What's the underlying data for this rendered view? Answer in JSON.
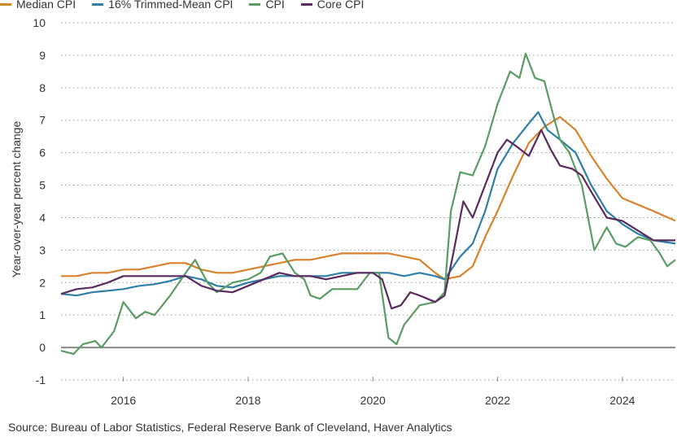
{
  "chart_data": {
    "type": "line",
    "title": "",
    "ylabel": "Year-over-year percent change",
    "xlabel": "",
    "ylim": [
      -1,
      10
    ],
    "xlim": [
      2015.0,
      2024.85
    ],
    "y_ticks": [
      "-1",
      "0",
      "1",
      "2",
      "3",
      "4",
      "5",
      "6",
      "7",
      "8",
      "9",
      "10"
    ],
    "x_ticks": [
      "2016",
      "2018",
      "2020",
      "2022",
      "2024"
    ],
    "grid": "horizontal dotted",
    "legend_position": "top-left",
    "source": "Source: Bureau of Labor Statistics, Federal Reserve Bank of Cleveland, Haver Analytics",
    "series": [
      {
        "name": "Median CPI",
        "color": "#d9822b",
        "points": [
          [
            2015.0,
            2.2
          ],
          [
            2015.25,
            2.2
          ],
          [
            2015.5,
            2.3
          ],
          [
            2015.75,
            2.3
          ],
          [
            2016.0,
            2.4
          ],
          [
            2016.25,
            2.4
          ],
          [
            2016.5,
            2.5
          ],
          [
            2016.75,
            2.6
          ],
          [
            2017.0,
            2.6
          ],
          [
            2017.25,
            2.4
          ],
          [
            2017.5,
            2.3
          ],
          [
            2017.75,
            2.3
          ],
          [
            2018.0,
            2.4
          ],
          [
            2018.25,
            2.5
          ],
          [
            2018.5,
            2.6
          ],
          [
            2018.75,
            2.7
          ],
          [
            2019.0,
            2.7
          ],
          [
            2019.25,
            2.8
          ],
          [
            2019.5,
            2.9
          ],
          [
            2019.75,
            2.9
          ],
          [
            2020.0,
            2.9
          ],
          [
            2020.25,
            2.9
          ],
          [
            2020.5,
            2.8
          ],
          [
            2020.75,
            2.7
          ],
          [
            2021.0,
            2.3
          ],
          [
            2021.15,
            2.1
          ],
          [
            2021.4,
            2.2
          ],
          [
            2021.6,
            2.5
          ],
          [
            2021.8,
            3.4
          ],
          [
            2022.0,
            4.2
          ],
          [
            2022.25,
            5.3
          ],
          [
            2022.5,
            6.3
          ],
          [
            2022.75,
            6.8
          ],
          [
            2023.0,
            7.1
          ],
          [
            2023.25,
            6.7
          ],
          [
            2023.5,
            5.9
          ],
          [
            2023.75,
            5.2
          ],
          [
            2024.0,
            4.6
          ],
          [
            2024.25,
            4.4
          ],
          [
            2024.5,
            4.2
          ],
          [
            2024.85,
            3.9
          ]
        ]
      },
      {
        "name": "16% Trimmed-Mean CPI",
        "color": "#2e7fa8",
        "points": [
          [
            2015.0,
            1.65
          ],
          [
            2015.25,
            1.6
          ],
          [
            2015.5,
            1.7
          ],
          [
            2015.75,
            1.75
          ],
          [
            2016.0,
            1.8
          ],
          [
            2016.25,
            1.9
          ],
          [
            2016.5,
            1.95
          ],
          [
            2016.75,
            2.05
          ],
          [
            2017.0,
            2.2
          ],
          [
            2017.25,
            2.1
          ],
          [
            2017.5,
            1.9
          ],
          [
            2017.75,
            1.85
          ],
          [
            2018.0,
            2.0
          ],
          [
            2018.25,
            2.1
          ],
          [
            2018.5,
            2.2
          ],
          [
            2018.75,
            2.2
          ],
          [
            2019.0,
            2.2
          ],
          [
            2019.25,
            2.2
          ],
          [
            2019.5,
            2.3
          ],
          [
            2019.75,
            2.3
          ],
          [
            2020.0,
            2.3
          ],
          [
            2020.25,
            2.3
          ],
          [
            2020.5,
            2.2
          ],
          [
            2020.75,
            2.3
          ],
          [
            2021.0,
            2.2
          ],
          [
            2021.15,
            2.1
          ],
          [
            2021.4,
            2.8
          ],
          [
            2021.6,
            3.2
          ],
          [
            2021.8,
            4.2
          ],
          [
            2022.0,
            5.5
          ],
          [
            2022.25,
            6.3
          ],
          [
            2022.5,
            6.9
          ],
          [
            2022.65,
            7.25
          ],
          [
            2022.8,
            6.7
          ],
          [
            2023.0,
            6.4
          ],
          [
            2023.25,
            6.0
          ],
          [
            2023.5,
            5.0
          ],
          [
            2023.75,
            4.2
          ],
          [
            2024.0,
            3.8
          ],
          [
            2024.25,
            3.5
          ],
          [
            2024.5,
            3.3
          ],
          [
            2024.85,
            3.2
          ]
        ]
      },
      {
        "name": "CPI",
        "color": "#5a9c63",
        "points": [
          [
            2015.0,
            -0.1
          ],
          [
            2015.2,
            -0.2
          ],
          [
            2015.35,
            0.1
          ],
          [
            2015.55,
            0.2
          ],
          [
            2015.65,
            0.0
          ],
          [
            2015.85,
            0.5
          ],
          [
            2016.0,
            1.4
          ],
          [
            2016.2,
            0.9
          ],
          [
            2016.35,
            1.1
          ],
          [
            2016.5,
            1.0
          ],
          [
            2016.75,
            1.6
          ],
          [
            2017.0,
            2.3
          ],
          [
            2017.15,
            2.7
          ],
          [
            2017.35,
            2.0
          ],
          [
            2017.5,
            1.7
          ],
          [
            2017.75,
            2.0
          ],
          [
            2018.0,
            2.1
          ],
          [
            2018.2,
            2.3
          ],
          [
            2018.35,
            2.8
          ],
          [
            2018.55,
            2.9
          ],
          [
            2018.75,
            2.3
          ],
          [
            2018.9,
            2.1
          ],
          [
            2019.0,
            1.6
          ],
          [
            2019.15,
            1.5
          ],
          [
            2019.35,
            1.8
          ],
          [
            2019.5,
            1.8
          ],
          [
            2019.75,
            1.8
          ],
          [
            2019.95,
            2.3
          ],
          [
            2020.1,
            2.3
          ],
          [
            2020.25,
            0.3
          ],
          [
            2020.38,
            0.1
          ],
          [
            2020.5,
            0.7
          ],
          [
            2020.75,
            1.3
          ],
          [
            2021.0,
            1.4
          ],
          [
            2021.15,
            1.7
          ],
          [
            2021.25,
            4.2
          ],
          [
            2021.4,
            5.4
          ],
          [
            2021.6,
            5.3
          ],
          [
            2021.8,
            6.2
          ],
          [
            2022.0,
            7.5
          ],
          [
            2022.2,
            8.5
          ],
          [
            2022.35,
            8.3
          ],
          [
            2022.45,
            9.05
          ],
          [
            2022.6,
            8.3
          ],
          [
            2022.75,
            8.2
          ],
          [
            2022.9,
            7.1
          ],
          [
            2023.0,
            6.4
          ],
          [
            2023.15,
            6.0
          ],
          [
            2023.35,
            5.0
          ],
          [
            2023.55,
            3.0
          ],
          [
            2023.75,
            3.7
          ],
          [
            2023.9,
            3.2
          ],
          [
            2024.05,
            3.1
          ],
          [
            2024.25,
            3.4
          ],
          [
            2024.45,
            3.3
          ],
          [
            2024.6,
            2.9
          ],
          [
            2024.72,
            2.5
          ],
          [
            2024.85,
            2.7
          ]
        ]
      },
      {
        "name": "Core CPI",
        "color": "#5a2a5e",
        "points": [
          [
            2015.0,
            1.65
          ],
          [
            2015.25,
            1.8
          ],
          [
            2015.5,
            1.85
          ],
          [
            2015.75,
            2.0
          ],
          [
            2016.0,
            2.2
          ],
          [
            2016.25,
            2.2
          ],
          [
            2016.5,
            2.2
          ],
          [
            2016.75,
            2.2
          ],
          [
            2017.0,
            2.2
          ],
          [
            2017.25,
            1.9
          ],
          [
            2017.5,
            1.75
          ],
          [
            2017.75,
            1.7
          ],
          [
            2018.0,
            1.9
          ],
          [
            2018.25,
            2.1
          ],
          [
            2018.5,
            2.3
          ],
          [
            2018.75,
            2.2
          ],
          [
            2019.0,
            2.2
          ],
          [
            2019.25,
            2.1
          ],
          [
            2019.5,
            2.2
          ],
          [
            2019.75,
            2.3
          ],
          [
            2020.0,
            2.3
          ],
          [
            2020.15,
            2.1
          ],
          [
            2020.3,
            1.2
          ],
          [
            2020.45,
            1.3
          ],
          [
            2020.6,
            1.7
          ],
          [
            2020.75,
            1.6
          ],
          [
            2021.0,
            1.4
          ],
          [
            2021.15,
            1.6
          ],
          [
            2021.3,
            3.0
          ],
          [
            2021.45,
            4.5
          ],
          [
            2021.6,
            4.0
          ],
          [
            2021.8,
            5.0
          ],
          [
            2022.0,
            6.0
          ],
          [
            2022.15,
            6.4
          ],
          [
            2022.3,
            6.2
          ],
          [
            2022.5,
            5.9
          ],
          [
            2022.7,
            6.7
          ],
          [
            2022.85,
            6.1
          ],
          [
            2023.0,
            5.6
          ],
          [
            2023.2,
            5.5
          ],
          [
            2023.35,
            5.3
          ],
          [
            2023.5,
            4.8
          ],
          [
            2023.75,
            4.0
          ],
          [
            2024.0,
            3.9
          ],
          [
            2024.25,
            3.6
          ],
          [
            2024.5,
            3.3
          ],
          [
            2024.7,
            3.3
          ],
          [
            2024.85,
            3.3
          ]
        ]
      }
    ]
  }
}
